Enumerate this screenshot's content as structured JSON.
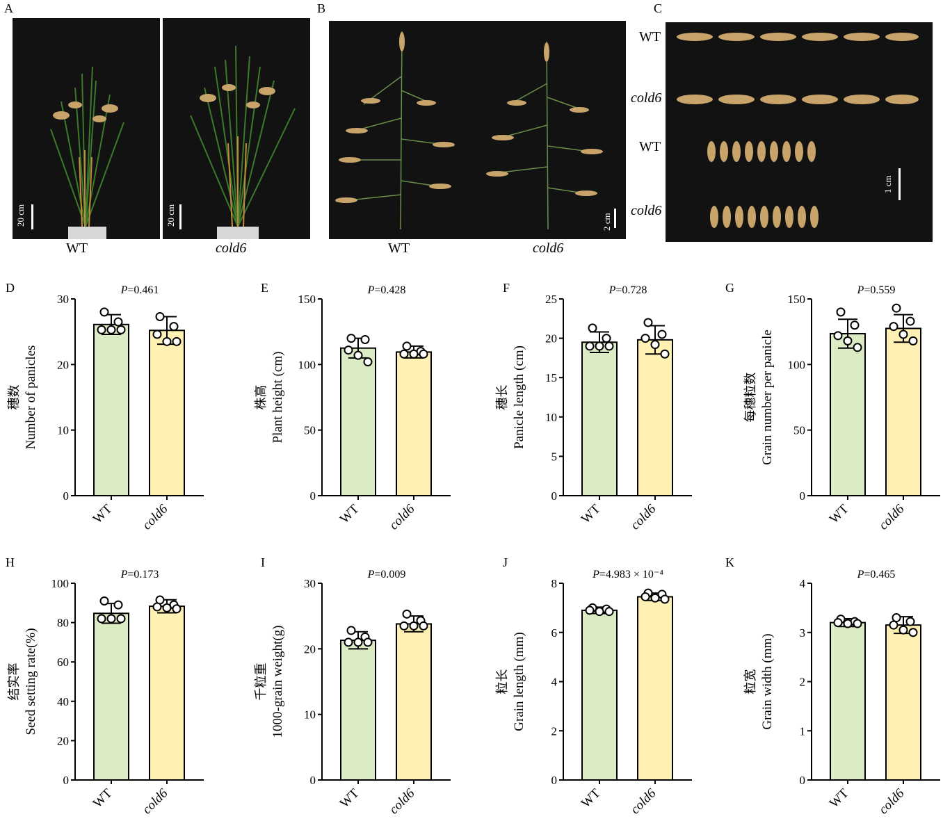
{
  "photos": {
    "A": {
      "label": "A",
      "left_caption": "WT",
      "right_caption": "cold6",
      "scale_left": "20 cm",
      "scale_right": "20 cm"
    },
    "B": {
      "label": "B",
      "left_caption": "WT",
      "right_caption": "cold6",
      "scale": "2 cm"
    },
    "C": {
      "label": "C",
      "rows": [
        "WT",
        "cold6",
        "WT",
        "cold6"
      ],
      "scale": "1 cm"
    }
  },
  "colors": {
    "wt_fill": "#dbebc4",
    "cold6_fill": "#fff0b3",
    "bar_stroke": "#000000",
    "photo_bg": "#121212",
    "grain": "#c9a46a"
  },
  "chart_data": [
    {
      "panel": "D",
      "type": "bar",
      "categories": [
        "WT",
        "cold6"
      ],
      "values": [
        26.1,
        25.2
      ],
      "errors": [
        1.5,
        2.1
      ],
      "points": [
        [
          28,
          26.5,
          25.3,
          25.3,
          25.3
        ],
        [
          27.3,
          25.8,
          24.6,
          23.5,
          23.5
        ]
      ],
      "ylim": [
        0,
        30
      ],
      "yticks": [
        0,
        10,
        20,
        30
      ],
      "ylabel_cn": "穗数",
      "ylabel": "Number of panicles",
      "p_prefix": "P",
      "p_value": "=0.461"
    },
    {
      "panel": "E",
      "type": "bar",
      "categories": [
        "WT",
        "cold6"
      ],
      "values": [
        112.5,
        109.5
      ],
      "errors": [
        7.5,
        4.5
      ],
      "points": [
        [
          120,
          119,
          111,
          107,
          102
        ],
        [
          114,
          110,
          108,
          108,
          108
        ]
      ],
      "ylim": [
        0,
        150
      ],
      "yticks": [
        0,
        50,
        100,
        150
      ],
      "ylabel_cn": "株高",
      "ylabel": "Plant height (cm)",
      "p_prefix": "P",
      "p_value": "=0.428"
    },
    {
      "panel": "F",
      "type": "bar",
      "categories": [
        "WT",
        "cold6"
      ],
      "values": [
        19.5,
        19.8
      ],
      "errors": [
        1.3,
        1.8
      ],
      "points": [
        [
          21.3,
          20,
          19,
          19,
          19
        ],
        [
          22,
          20.5,
          20,
          19.2,
          18
        ]
      ],
      "ylim": [
        0,
        25
      ],
      "yticks": [
        0,
        5,
        10,
        15,
        20,
        25
      ],
      "ylabel_cn": "穗长",
      "ylabel": "Panicle length (cm)",
      "p_prefix": "P",
      "p_value": "=0.728"
    },
    {
      "panel": "G",
      "type": "bar",
      "categories": [
        "WT",
        "cold6"
      ],
      "values": [
        123.5,
        127.5
      ],
      "errors": [
        11,
        10.5
      ],
      "points": [
        [
          140,
          130,
          122,
          118,
          113
        ],
        [
          143,
          133,
          129,
          123,
          118
        ]
      ],
      "ylim": [
        0,
        150
      ],
      "yticks": [
        0,
        50,
        100,
        150
      ],
      "ylabel_cn": "每穗粒数",
      "ylabel": "Grain number per panicle",
      "p_prefix": "P",
      "p_value": "=0.559"
    },
    {
      "panel": "H",
      "type": "bar",
      "categories": [
        "WT",
        "cold6"
      ],
      "values": [
        84.7,
        88.3
      ],
      "errors": [
        5,
        3.3
      ],
      "points": [
        [
          91,
          89,
          82,
          82,
          82
        ],
        [
          91.5,
          89,
          88,
          87.5,
          87
        ]
      ],
      "ylim": [
        0,
        100
      ],
      "yticks": [
        0,
        20,
        40,
        60,
        80,
        100
      ],
      "ylabel_cn": "结实率",
      "ylabel": "Seed setting rate(%)",
      "p_prefix": "P",
      "p_value": "=0.173"
    },
    {
      "panel": "I",
      "type": "bar",
      "categories": [
        "WT",
        "cold6"
      ],
      "values": [
        21.3,
        23.8
      ],
      "errors": [
        1.3,
        1.2
      ],
      "points": [
        [
          22.8,
          21.8,
          21,
          21,
          21
        ],
        [
          25.3,
          24.3,
          23.5,
          23.5,
          23.5
        ]
      ],
      "ylim": [
        0,
        30
      ],
      "yticks": [
        0,
        10,
        20,
        30
      ],
      "ylabel_cn": "千粒重",
      "ylabel": "1000-grain weight(g)",
      "p_prefix": "P",
      "p_value": "=0.009"
    },
    {
      "panel": "J",
      "type": "bar",
      "categories": [
        "WT",
        "cold6"
      ],
      "values": [
        6.9,
        7.45
      ],
      "errors": [
        0.13,
        0.15
      ],
      "points": [
        [
          7.0,
          6.95,
          6.9,
          6.85,
          6.85
        ],
        [
          7.6,
          7.55,
          7.45,
          7.4,
          7.35
        ]
      ],
      "ylim": [
        0,
        8
      ],
      "yticks": [
        0,
        2,
        4,
        6,
        8
      ],
      "ylabel_cn": "粒长",
      "ylabel": "Grain length (mm)",
      "p_prefix": "P",
      "p_value": "=4.983 × 10⁻⁴"
    },
    {
      "panel": "K",
      "type": "bar",
      "categories": [
        "WT",
        "cold6"
      ],
      "values": [
        3.2,
        3.15
      ],
      "errors": [
        0.08,
        0.17
      ],
      "points": [
        [
          3.27,
          3.22,
          3.2,
          3.18,
          3.18
        ],
        [
          3.3,
          3.22,
          3.15,
          3.05,
          3.0
        ]
      ],
      "ylim": [
        0,
        4
      ],
      "yticks": [
        0,
        1,
        2,
        3,
        4
      ],
      "ylabel_cn": "粒宽",
      "ylabel": "Grain width (mm)",
      "p_prefix": "P",
      "p_value": "=0.465"
    }
  ]
}
